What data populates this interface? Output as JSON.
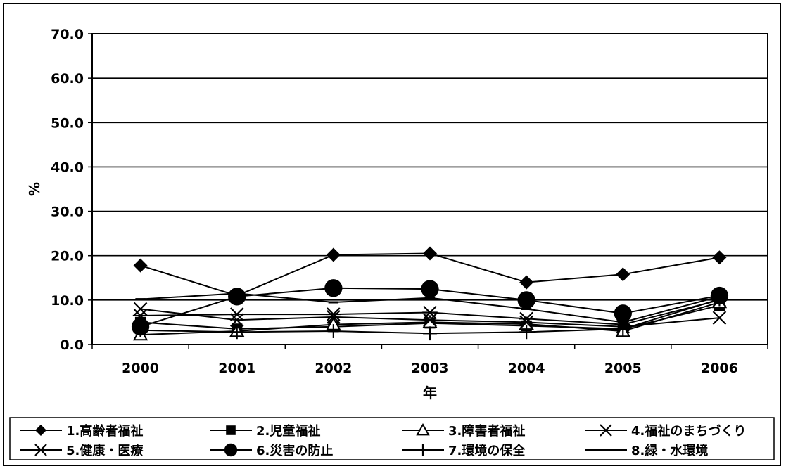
{
  "chart_data": {
    "type": "line",
    "title": "",
    "xlabel": "年",
    "ylabel": "%",
    "ylim": [
      0,
      70
    ],
    "yticks": [
      "0.0",
      "10.0",
      "20.0",
      "30.0",
      "40.0",
      "50.0",
      "60.0",
      "70.0"
    ],
    "categories": [
      "2000",
      "2001",
      "2002",
      "2003",
      "2004",
      "2005",
      "2006"
    ],
    "grid": "horizontal",
    "legend_position": "bottom",
    "series": [
      {
        "name": "1.高齢者福祉",
        "marker": "diamond",
        "values": [
          17.8,
          11.0,
          20.2,
          20.5,
          14.0,
          15.8,
          19.6
        ]
      },
      {
        "name": "2.児童福祉",
        "marker": "square",
        "values": [
          5.0,
          3.5,
          4.0,
          4.8,
          4.2,
          3.5,
          8.8
        ]
      },
      {
        "name": "3.障害者福祉",
        "marker": "triangle",
        "values": [
          2.2,
          3.0,
          4.5,
          5.0,
          4.6,
          3.0,
          9.5
        ]
      },
      {
        "name": "4.福祉のまちづくり",
        "marker": "x",
        "values": [
          8.0,
          5.5,
          6.2,
          5.5,
          5.0,
          4.0,
          6.0
        ]
      },
      {
        "name": "5.健康・医療",
        "marker": "star",
        "values": [
          6.5,
          6.8,
          6.8,
          7.2,
          5.8,
          4.5,
          10.0
        ]
      },
      {
        "name": "6.災害の防止",
        "marker": "circle",
        "values": [
          4.0,
          10.8,
          12.7,
          12.5,
          10.0,
          7.0,
          11.0
        ]
      },
      {
        "name": "7.環境の保全",
        "marker": "plus",
        "values": [
          3.2,
          2.8,
          3.0,
          2.5,
          2.8,
          3.5,
          10.2
        ]
      },
      {
        "name": "8.緑・水環境",
        "marker": "dash",
        "values": [
          10.2,
          11.5,
          9.5,
          10.5,
          8.0,
          5.0,
          10.8
        ]
      }
    ]
  }
}
